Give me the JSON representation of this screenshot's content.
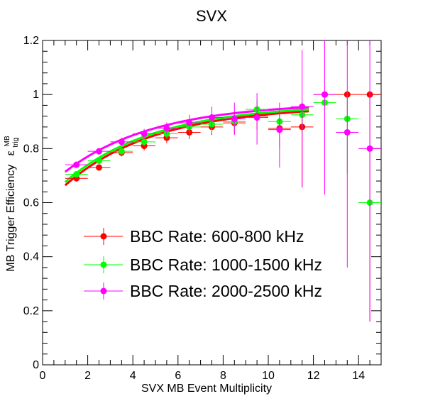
{
  "chart_data": {
    "type": "scatter",
    "title": "SVX",
    "xlabel": "SVX MB Event Multiplicity",
    "ylabel": "MB Trigger Efficiency",
    "ylabel_symbol": "ε",
    "ylabel_sup": "MB",
    "ylabel_sub": "trig",
    "xlim": [
      0,
      15
    ],
    "ylim": [
      0,
      1.2
    ],
    "xticks": [
      0,
      2,
      4,
      6,
      8,
      10,
      12,
      14
    ],
    "xtick_labels": [
      "0",
      "2",
      "4",
      "6",
      "8",
      "10",
      "12",
      "14"
    ],
    "yticks": [
      0,
      0.2,
      0.4,
      0.6,
      0.8,
      1.0,
      1.2
    ],
    "ytick_labels": [
      "0",
      "0.2",
      "0.4",
      "0.6",
      "0.8",
      "1",
      "1.2"
    ],
    "grid": false,
    "legend_position": "center-left",
    "series": [
      {
        "name": "BBC Rate: 600-800 kHz",
        "color": "#ff0000",
        "x": [
          1.5,
          2.5,
          3.5,
          4.5,
          5.5,
          6.5,
          7.5,
          8.5,
          9.5,
          10.5,
          11.5,
          12.5,
          13.5,
          14.5
        ],
        "y": [
          0.69,
          0.73,
          0.785,
          0.81,
          0.84,
          0.86,
          0.88,
          0.895,
          0.92,
          0.875,
          0.88,
          1.0,
          1.0,
          1.0
        ],
        "yerr_low": [
          0.012,
          0.012,
          0.014,
          0.017,
          0.02,
          0.025,
          0.03,
          0.04,
          0.05,
          0.07,
          0.22,
          0.0,
          0.0,
          0.84
        ],
        "yerr_high": [
          0.012,
          0.012,
          0.014,
          0.017,
          0.02,
          0.025,
          0.03,
          0.04,
          0.05,
          0.06,
          0.06,
          0.0,
          0.0,
          0.0
        ],
        "fit": {
          "x_range": [
            1.0,
            11.8
          ],
          "y_start": 0.664,
          "y_end": 0.938
        }
      },
      {
        "name": "BBC Rate: 1000-1500 kHz",
        "color": "#00ff00",
        "x": [
          1.5,
          2.5,
          3.5,
          4.5,
          5.5,
          6.5,
          7.5,
          8.5,
          9.5,
          10.5,
          11.5,
          12.5,
          13.5,
          14.5
        ],
        "y": [
          0.705,
          0.755,
          0.79,
          0.825,
          0.855,
          0.88,
          0.89,
          0.9,
          0.945,
          0.9,
          0.925,
          0.97,
          0.91,
          0.6
        ],
        "yerr_low": [
          0.01,
          0.01,
          0.012,
          0.015,
          0.018,
          0.02,
          0.025,
          0.03,
          0.04,
          0.05,
          0.07,
          0.1,
          0.2,
          0.34
        ],
        "yerr_high": [
          0.01,
          0.01,
          0.012,
          0.015,
          0.018,
          0.02,
          0.025,
          0.03,
          0.04,
          0.05,
          0.05,
          0.03,
          0.09,
          0.0
        ],
        "fit": {
          "x_range": [
            1.0,
            11.8
          ],
          "y_start": 0.676,
          "y_end": 0.945
        }
      },
      {
        "name": "BBC Rate: 2000-2500 kHz",
        "color": "#ff00ff",
        "x": [
          1.5,
          2.5,
          3.5,
          4.5,
          5.5,
          6.5,
          7.5,
          8.5,
          9.5,
          10.5,
          11.5,
          12.5,
          13.5,
          14.5
        ],
        "y": [
          0.74,
          0.79,
          0.825,
          0.855,
          0.875,
          0.895,
          0.915,
          0.91,
          0.915,
          0.87,
          0.955,
          1.0,
          0.86,
          0.8
        ],
        "yerr_low": [
          0.012,
          0.012,
          0.015,
          0.018,
          0.022,
          0.03,
          0.04,
          0.06,
          0.1,
          0.14,
          0.3,
          0.37,
          0.5,
          0.64
        ],
        "yerr_high": [
          0.012,
          0.012,
          0.015,
          0.018,
          0.022,
          0.03,
          0.04,
          0.06,
          0.09,
          0.1,
          0.21,
          0.2,
          0.34,
          0.4
        ],
        "fit": {
          "x_range": [
            1.0,
            11.8
          ],
          "y_start": 0.714,
          "y_end": 0.953
        }
      }
    ]
  }
}
